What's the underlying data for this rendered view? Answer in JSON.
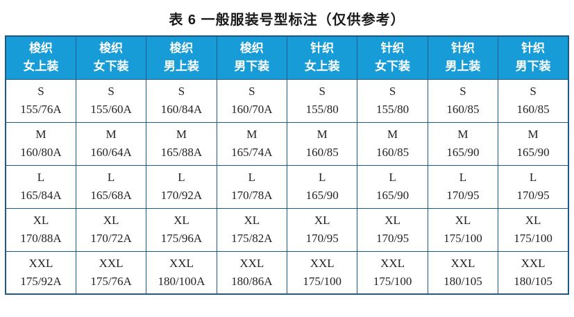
{
  "title": "表 6 一般服装号型标注（仅供参考）",
  "colors": {
    "header_bg": "#189cd8",
    "header_text": "#ffffff",
    "border": "#1a5a8a",
    "cell_text": "#222222",
    "title_text": "#1a1a1a"
  },
  "chart_data": {
    "type": "table",
    "title": "表 6 一般服装号型标注（仅供参考）",
    "columns": [
      {
        "line1": "梭织",
        "line2": "女上装"
      },
      {
        "line1": "梭织",
        "line2": "女下装"
      },
      {
        "line1": "梭织",
        "line2": "男上装"
      },
      {
        "line1": "梭织",
        "line2": "男下装"
      },
      {
        "line1": "针织",
        "line2": "女上装"
      },
      {
        "line1": "针织",
        "line2": "女下装"
      },
      {
        "line1": "针织",
        "line2": "男上装"
      },
      {
        "line1": "针织",
        "line2": "男下装"
      }
    ],
    "rows": [
      {
        "size": "S",
        "values": [
          "155/76A",
          "155/60A",
          "160/84A",
          "160/70A",
          "155/80",
          "155/80",
          "160/85",
          "160/85"
        ]
      },
      {
        "size": "M",
        "values": [
          "160/80A",
          "160/64A",
          "165/88A",
          "165/74A",
          "160/85",
          "160/85",
          "165/90",
          "165/90"
        ]
      },
      {
        "size": "L",
        "values": [
          "165/84A",
          "165/68A",
          "170/92A",
          "170/78A",
          "165/90",
          "165/90",
          "170/95",
          "170/95"
        ]
      },
      {
        "size": "XL",
        "values": [
          "170/88A",
          "170/72A",
          "175/96A",
          "175/82A",
          "170/95",
          "170/95",
          "175/100",
          "175/100"
        ]
      },
      {
        "size": "XXL",
        "values": [
          "175/92A",
          "175/76A",
          "180/100A",
          "180/86A",
          "175/100",
          "175/100",
          "180/105",
          "180/105"
        ]
      }
    ]
  }
}
